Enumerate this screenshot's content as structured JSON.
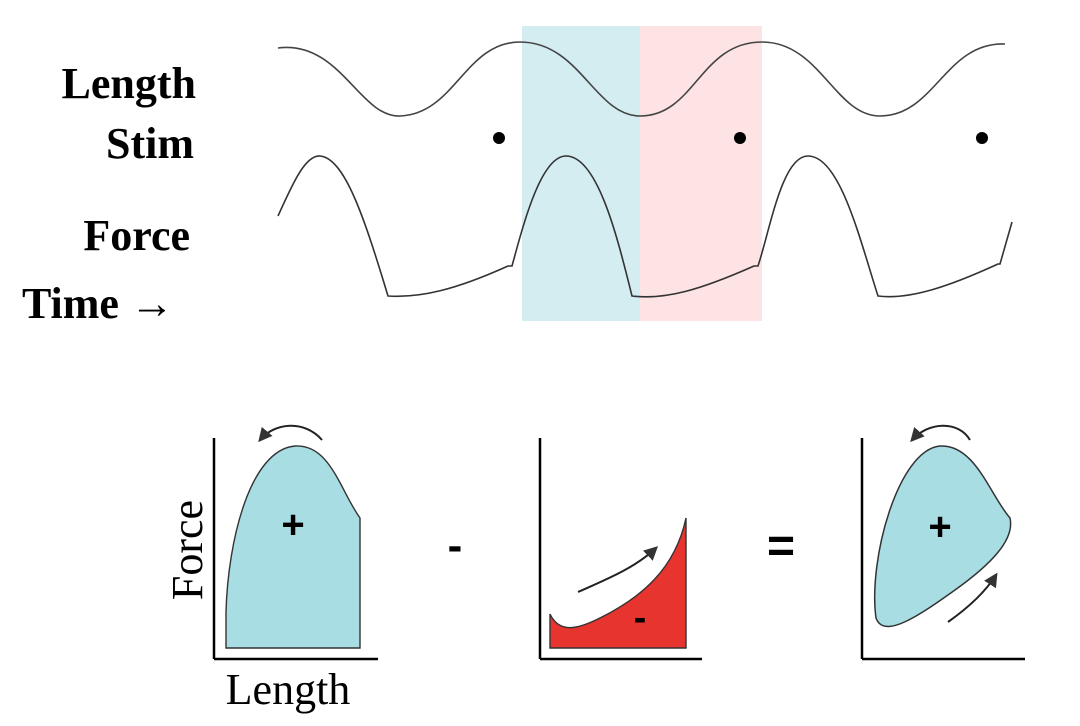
{
  "traces": {
    "length_label": "Length",
    "stim_label": "Stim",
    "force_label": "Force",
    "time_label": "Time →",
    "colors": {
      "shortening_band": "#d3edf1",
      "lengthening_band": "#fde3e3",
      "trace": "#333333",
      "dot": "#000000"
    }
  },
  "loops": {
    "y_axis_label": "Force",
    "x_axis_label": "Length",
    "positive_sign": "+",
    "negative_sign": "-",
    "minus_operator": "-",
    "equals_operator": "=",
    "colors": {
      "positive_fill": "#a8dde4",
      "negative_fill": "#e8342e",
      "outline": "#333333"
    }
  }
}
